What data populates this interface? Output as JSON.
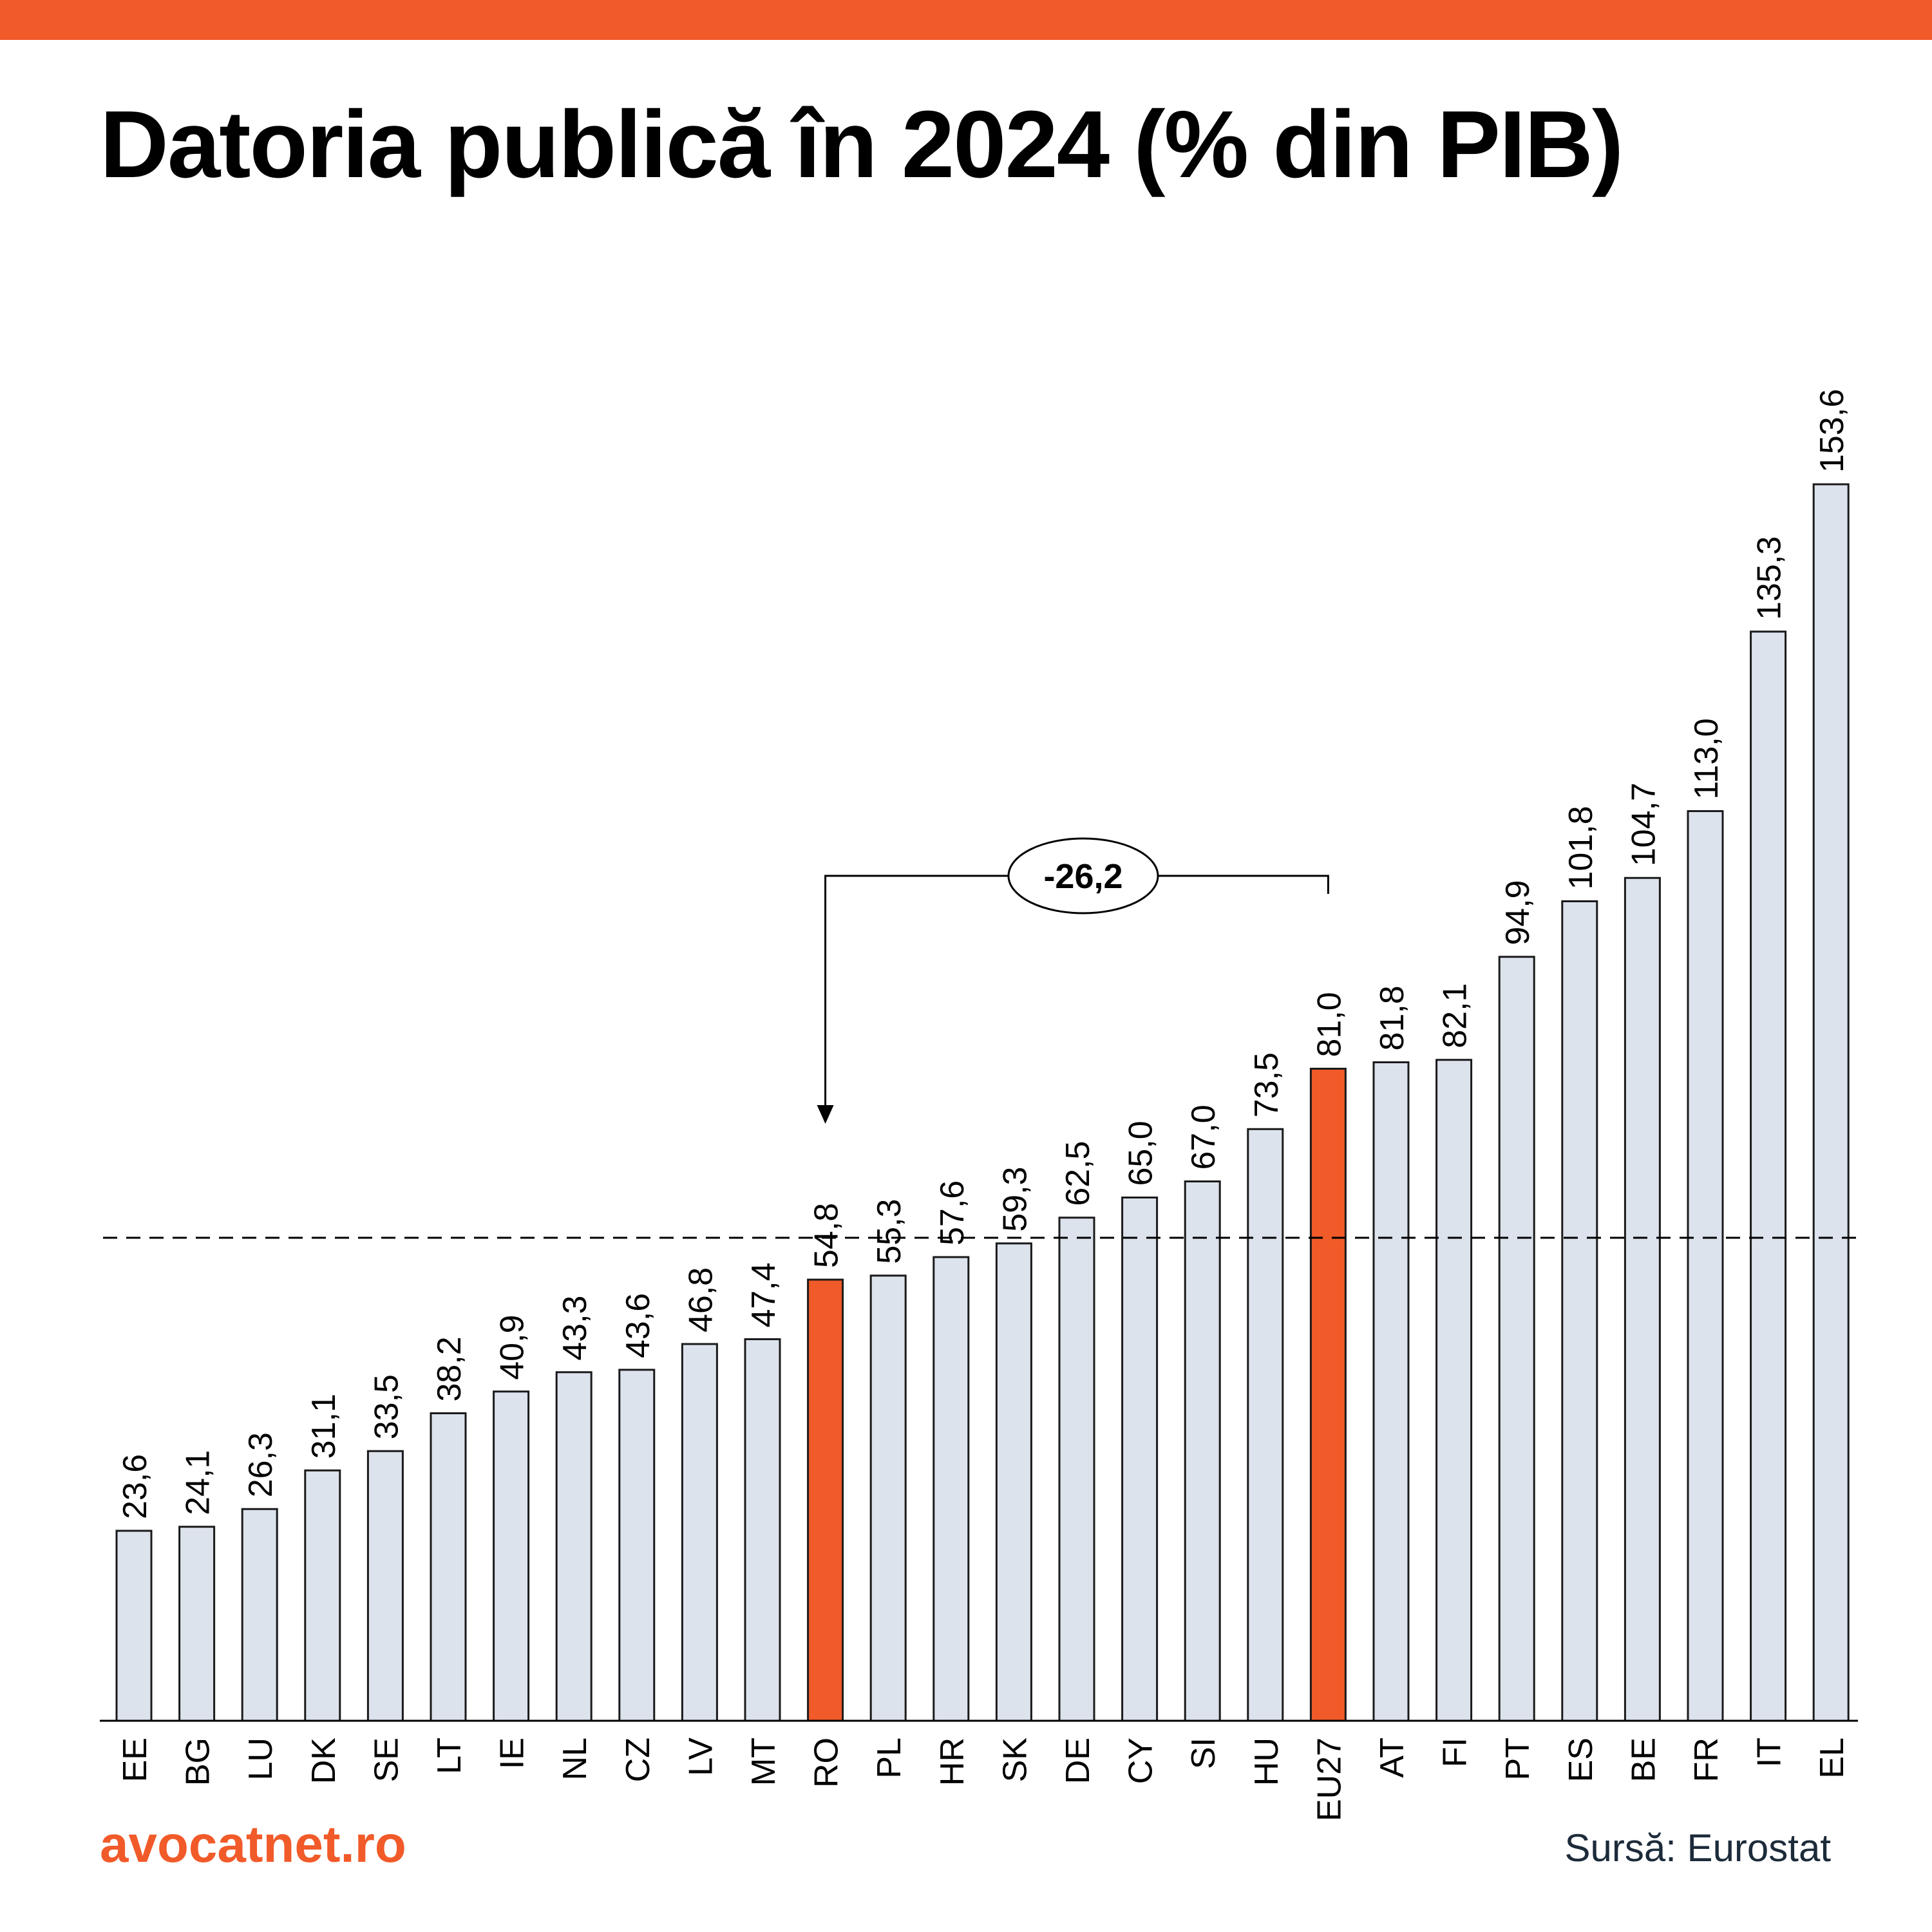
{
  "header": {
    "title": "Datoria publică în 2024 (% din PIB)"
  },
  "footer": {
    "brand": "avocatnet.ro",
    "source": "Sursă: Eurostat"
  },
  "colors": {
    "accent": "#f15a29",
    "bar_fill": "#dde3ed",
    "bar_stroke": "#1a1a1a",
    "text": "#000000"
  },
  "chart_data": {
    "type": "bar",
    "title": "Datoria publică în 2024 (% din PIB)",
    "xlabel": "",
    "ylabel": "",
    "ylim": [
      0,
      160
    ],
    "grid": false,
    "categories": [
      "EE",
      "BG",
      "LU",
      "DK",
      "SE",
      "LT",
      "IE",
      "NL",
      "CZ",
      "LV",
      "MT",
      "RO",
      "PL",
      "HR",
      "SK",
      "DE",
      "CY",
      "SI",
      "HU",
      "EU27",
      "AT",
      "FI",
      "PT",
      "ES",
      "BE",
      "FR",
      "IT",
      "EL"
    ],
    "values": [
      23.6,
      24.1,
      26.3,
      31.1,
      33.5,
      38.2,
      40.9,
      43.3,
      43.6,
      46.8,
      47.4,
      54.8,
      55.3,
      57.6,
      59.3,
      62.5,
      65.0,
      67.0,
      73.5,
      81.0,
      81.8,
      82.1,
      94.9,
      101.8,
      104.7,
      113.0,
      135.3,
      153.6
    ],
    "value_labels": [
      "23,6",
      "24,1",
      "26,3",
      "31,1",
      "33,5",
      "38,2",
      "40,9",
      "43,3",
      "43,6",
      "46,8",
      "47,4",
      "54,8",
      "55,3",
      "57,6",
      "59,3",
      "62,5",
      "65,0",
      "67,0",
      "73,5",
      "81,0",
      "81,8",
      "82,1",
      "94,9",
      "101,8",
      "104,7",
      "113,0",
      "135,3",
      "153,6"
    ],
    "highlighted": [
      "RO",
      "EU27"
    ],
    "reference_line": {
      "value": 60,
      "style": "dashed"
    },
    "annotation": {
      "from": "EU27",
      "to": "RO",
      "label": "-26,2"
    }
  }
}
